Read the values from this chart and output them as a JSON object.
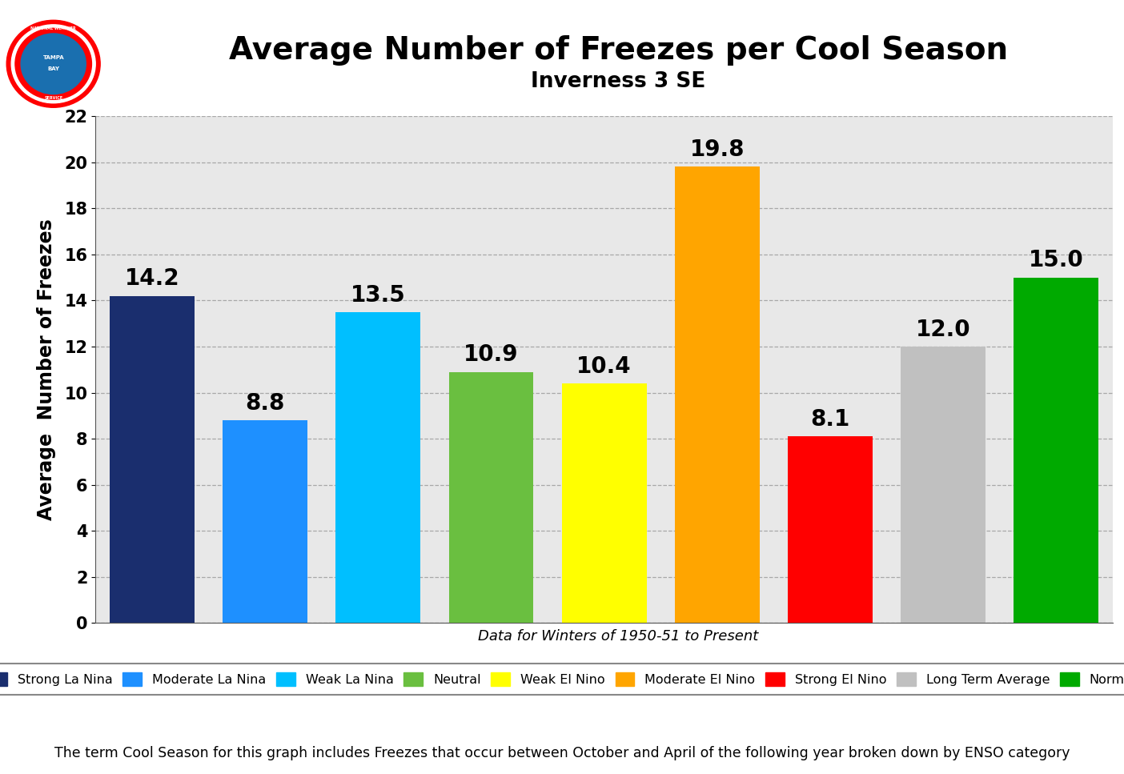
{
  "title": "Average Number of Freezes per Cool Season",
  "subtitle": "Inverness 3 SE",
  "categories": [
    "Strong La Nina",
    "Moderate La Nina",
    "Weak La Nina",
    "Neutral",
    "Weak El Nino",
    "Moderate El Nino",
    "Strong El Nino",
    "Long Term Average",
    "Normal"
  ],
  "values": [
    14.2,
    8.8,
    13.5,
    10.9,
    10.4,
    19.8,
    8.1,
    12.0,
    15.0
  ],
  "bar_colors": [
    "#1a2e6e",
    "#1e90ff",
    "#00bfff",
    "#6abf40",
    "#ffff00",
    "#ffa500",
    "#ff0000",
    "#c0c0c0",
    "#00aa00"
  ],
  "ylabel": "Average  Number of Freezes",
  "ylim": [
    0,
    22
  ],
  "yticks": [
    0.0,
    2.0,
    4.0,
    6.0,
    8.0,
    10.0,
    12.0,
    14.0,
    16.0,
    18.0,
    20.0,
    22.0
  ],
  "footnote": "Data for Winters of 1950-51 to Present",
  "bottom_text": "The term Cool Season for this graph includes Freezes that occur between October and April of the following year broken down by ENSO category",
  "title_fontsize": 28,
  "subtitle_fontsize": 19,
  "ylabel_fontsize": 17,
  "bar_label_fontsize": 20,
  "plot_bg_color": "#e8e8e8",
  "grid_color": "#999999"
}
